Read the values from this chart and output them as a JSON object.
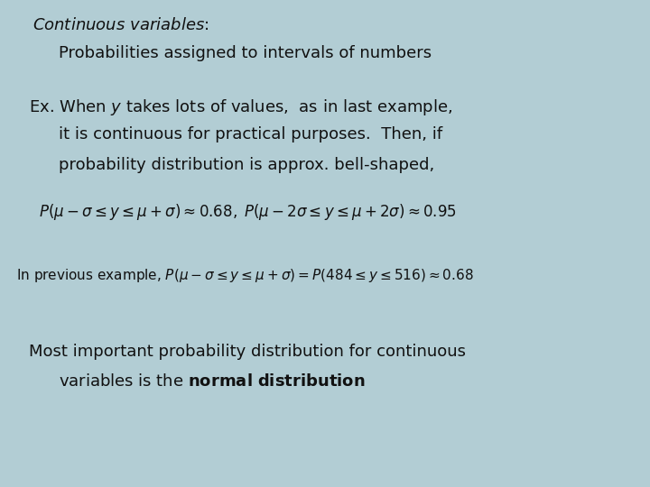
{
  "background_color": "#b2cdd4",
  "title_bold_italic": "Continuous variables",
  "title_colon": ":",
  "line1": "Probabilities assigned to intervals of numbers",
  "para1_line1": "Ex. When $y$ takes lots of values,  as in last example,",
  "para1_line2": "it is continuous for practical purposes.  Then, if",
  "para1_line3": "probability distribution is approx. bell-shaped,",
  "formula1": "$P(\\mu-\\sigma \\leq y \\leq \\mu+\\sigma) \\approx 0.68, \\; P(\\mu-2\\sigma \\leq y \\leq \\mu+2\\sigma) \\approx 0.95$",
  "small_line": "In previous example, $P(\\mu-\\sigma \\leq y \\leq \\mu+\\sigma) = P(484 \\leq y \\leq 516) \\approx 0.68$",
  "last_line1": "Most important probability distribution for continuous",
  "last_line2_pre": "variables is the ",
  "last_line2_bold": "normal distribution",
  "font_size_title": 13,
  "font_size_body": 13,
  "font_size_formula": 12,
  "font_size_small": 11,
  "text_color": "#111111",
  "fig_width": 7.2,
  "fig_height": 5.4,
  "dpi": 100
}
